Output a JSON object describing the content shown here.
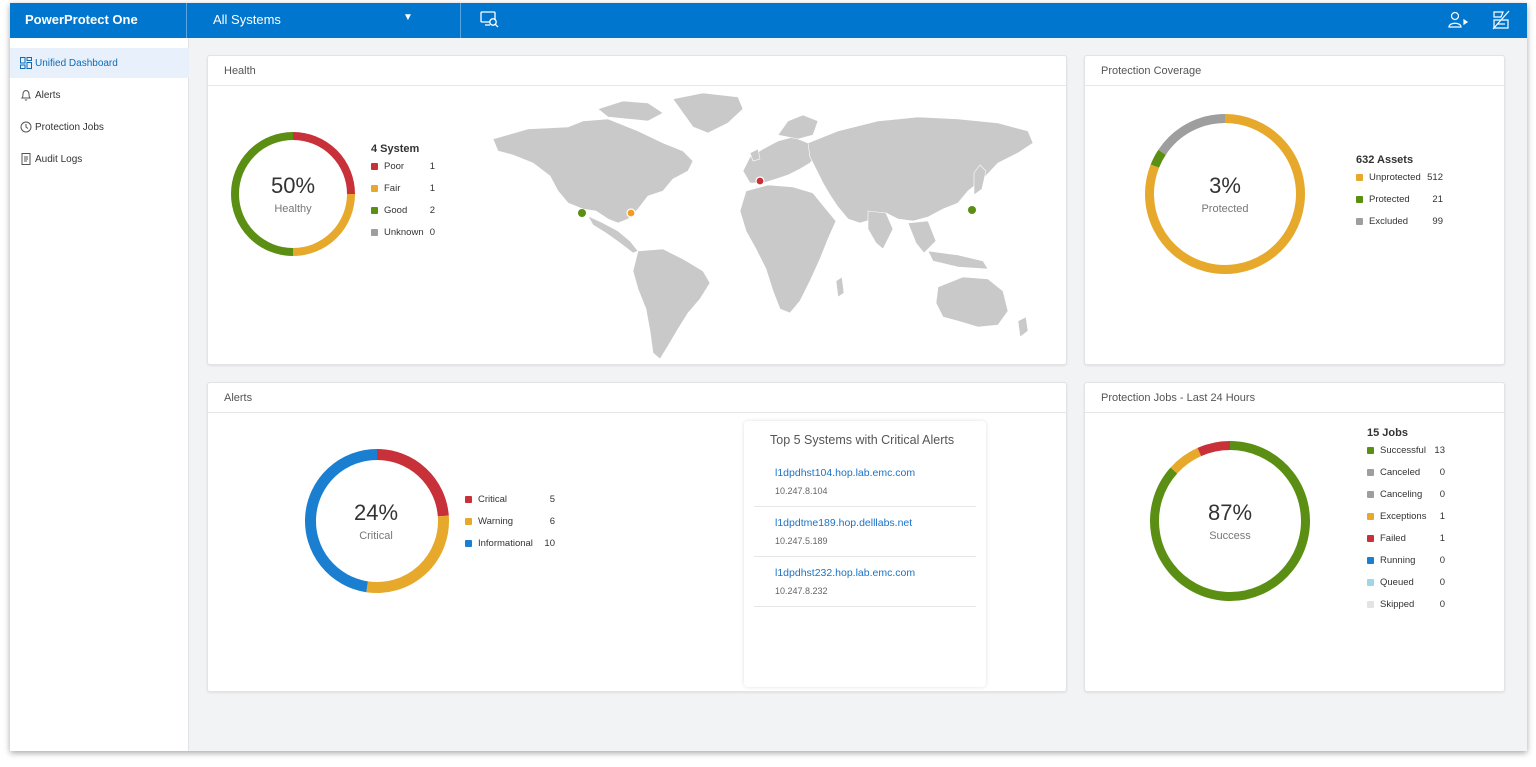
{
  "app": {
    "title": "PowerProtect One",
    "system_select": "All Systems",
    "colors": {
      "brand": "#0076ce",
      "poor": "#c8313a",
      "fair": "#e6a92b",
      "good": "#5b8f14",
      "unknown": "#9e9e9e",
      "info": "#1b7fd1"
    }
  },
  "sidebar": {
    "items": [
      {
        "label": "Unified Dashboard",
        "icon": "dashboard-icon",
        "active": true
      },
      {
        "label": "Alerts",
        "icon": "bell-icon"
      },
      {
        "label": "Protection Jobs",
        "icon": "clock-icon"
      },
      {
        "label": "Audit Logs",
        "icon": "document-icon"
      }
    ]
  },
  "health": {
    "title": "Health",
    "percent": "50%",
    "caption": "Healthy",
    "legend_title": "4 System",
    "items": [
      {
        "label": "Poor",
        "value": "1",
        "color": "#c8313a"
      },
      {
        "label": "Fair",
        "value": "1",
        "color": "#e6a92b"
      },
      {
        "label": "Good",
        "value": "2",
        "color": "#5b8f14"
      },
      {
        "label": "Unknown",
        "value": "0",
        "color": "#9e9e9e"
      }
    ]
  },
  "coverage": {
    "title": "Protection Coverage",
    "percent": "3%",
    "caption": "Protected",
    "legend_title": "632 Assets",
    "items": [
      {
        "label": "Unprotected",
        "value": "512",
        "color": "#e6a92b"
      },
      {
        "label": "Protected",
        "value": "21",
        "color": "#5b8f14"
      },
      {
        "label": "Excluded",
        "value": "99",
        "color": "#9e9e9e"
      }
    ]
  },
  "alerts": {
    "title": "Alerts",
    "percent": "24%",
    "caption": "Critical",
    "items": [
      {
        "label": "Critical",
        "value": "5",
        "color": "#c8313a"
      },
      {
        "label": "Warning",
        "value": "6",
        "color": "#e6a92b"
      },
      {
        "label": "Informational",
        "value": "10",
        "color": "#1b7fd1"
      }
    ],
    "top5": {
      "title": "Top 5 Systems with Critical Alerts",
      "systems": [
        {
          "host": "l1dpdhst104.hop.lab.emc.com",
          "ip": "10.247.8.104"
        },
        {
          "host": "l1dpdtme189.hop.delllabs.net",
          "ip": "10.247.5.189"
        },
        {
          "host": "l1dpdhst232.hop.lab.emc.com",
          "ip": "10.247.8.232"
        }
      ]
    }
  },
  "jobs": {
    "title": "Protection Jobs - Last 24 Hours",
    "percent": "87%",
    "caption": "Success",
    "legend_title": "15 Jobs",
    "items": [
      {
        "label": "Successful",
        "value": "13",
        "color": "#5b8f14"
      },
      {
        "label": "Canceled",
        "value": "0",
        "color": "#9e9e9e"
      },
      {
        "label": "Canceling",
        "value": "0",
        "color": "#9e9e9e"
      },
      {
        "label": "Exceptions",
        "value": "1",
        "color": "#e6a92b"
      },
      {
        "label": "Failed",
        "value": "1",
        "color": "#c8313a"
      },
      {
        "label": "Running",
        "value": "0",
        "color": "#1b7fd1"
      },
      {
        "label": "Queued",
        "value": "0",
        "color": "#9fd6e3"
      },
      {
        "label": "Skipped",
        "value": "0",
        "color": "#e3e3e3"
      }
    ]
  },
  "map_markers": [
    {
      "status": "good",
      "color": "#5b8f14"
    },
    {
      "status": "fair",
      "color": "#f39c1f"
    },
    {
      "status": "poor",
      "color": "#c8313a"
    },
    {
      "status": "good",
      "color": "#5b8f14"
    }
  ]
}
